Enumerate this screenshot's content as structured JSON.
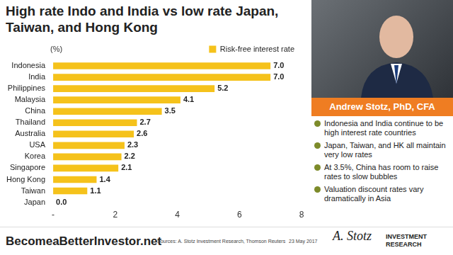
{
  "chart_data": {
    "type": "bar",
    "orientation": "horizontal",
    "title": "High rate Indo and India vs low rate Japan, Taiwan, and Hong Kong",
    "annotations": [
      "(%)"
    ],
    "categories": [
      "Indonesia",
      "India",
      "Philippines",
      "Malaysia",
      "China",
      "Thailand",
      "Australia",
      "USA",
      "Korea",
      "Singapore",
      "Hong Kong",
      "Taiwan",
      "Japan"
    ],
    "series": [
      {
        "name": "Risk-free interest rate",
        "color": "#f5c21b",
        "values": [
          7.0,
          7.0,
          5.2,
          4.1,
          3.5,
          2.7,
          2.6,
          2.3,
          2.2,
          2.1,
          1.4,
          1.1,
          0.0
        ],
        "value_labels": [
          "7.0",
          "7.0",
          "5.2",
          "4.1",
          "3.5",
          "2.7",
          "2.6",
          "2.3",
          "2.2",
          "2.1",
          "1.4",
          "1.1",
          "0.0"
        ]
      }
    ],
    "xlim": [
      0,
      8
    ],
    "xticks": [
      {
        "value": 0,
        "label": "-"
      },
      2,
      4,
      6,
      8
    ],
    "grid": false,
    "legend": "top-right",
    "data_labels": true
  },
  "panel": {
    "name": "Andrew Stotz, PhD, CFA",
    "bullets": [
      "Indonesia and India continue to be high interest rate countries",
      "Japan, Taiwan, and HK all maintain very low rates",
      "At 3.5%, China has room to raise rates to slow bubbles",
      "Valuation discount rates vary dramatically in Asia"
    ]
  },
  "footer": {
    "website": "BecomeaBetterInvestor.net",
    "sources": "Sources: A. Stotz Investment Research, Thomson Reuters",
    "date": "23 May 2017",
    "logo": [
      "A. Stotz",
      "INVESTMENT RESEARCH"
    ]
  }
}
